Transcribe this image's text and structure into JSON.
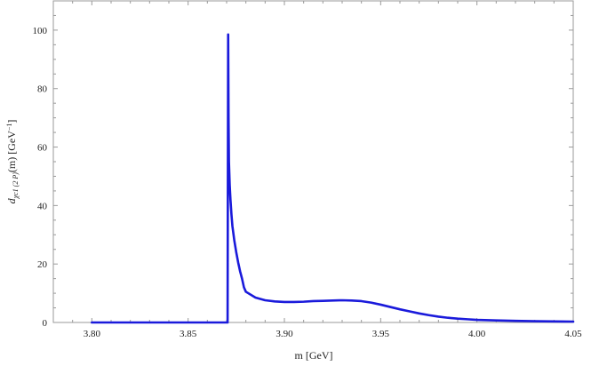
{
  "chart_data": {
    "type": "line",
    "title": "",
    "xlabel": "m [GeV]",
    "ylabel": {
      "base": "d",
      "sub": "χc1 (2 P)",
      "rest": "(m) [GeV",
      "sup": "−1",
      "close": "]"
    },
    "xlim": [
      3.78,
      4.05
    ],
    "ylim": [
      0,
      110
    ],
    "x_ticks": [
      3.8,
      3.85,
      3.9,
      3.95,
      4.0,
      4.05
    ],
    "x_tick_labels": [
      "3.80",
      "3.85",
      "3.90",
      "3.95",
      "4.00",
      "4.05"
    ],
    "y_ticks": [
      0,
      20,
      40,
      60,
      80,
      100
    ],
    "y_tick_labels": [
      "0",
      "20",
      "40",
      "60",
      "80",
      "100"
    ],
    "grid": false,
    "series": [
      {
        "color": "#1a1adb",
        "x": [
          3.8,
          3.82,
          3.84,
          3.86,
          3.8705,
          3.8708,
          3.871,
          3.8712,
          3.8716,
          3.872,
          3.8725,
          3.873,
          3.874,
          3.875,
          3.876,
          3.877,
          3.878,
          3.879,
          3.88,
          3.885,
          3.89,
          3.895,
          3.9,
          3.905,
          3.91,
          3.915,
          3.92,
          3.925,
          3.93,
          3.935,
          3.94,
          3.945,
          3.95,
          3.955,
          3.96,
          3.965,
          3.97,
          3.975,
          3.98,
          3.985,
          3.99,
          3.995,
          4.0,
          4.01,
          4.02,
          4.03,
          4.04,
          4.05
        ],
        "y": [
          0,
          0,
          0,
          0,
          0,
          98.5,
          70,
          55,
          47,
          42,
          37,
          33,
          28,
          24,
          20.5,
          17.5,
          15,
          12,
          10.5,
          8.5,
          7.6,
          7.2,
          7.0,
          7.0,
          7.1,
          7.3,
          7.4,
          7.5,
          7.6,
          7.5,
          7.3,
          6.8,
          6.1,
          5.3,
          4.5,
          3.8,
          3.1,
          2.5,
          2.0,
          1.6,
          1.3,
          1.1,
          0.9,
          0.7,
          0.55,
          0.45,
          0.35,
          0.3
        ]
      }
    ]
  }
}
